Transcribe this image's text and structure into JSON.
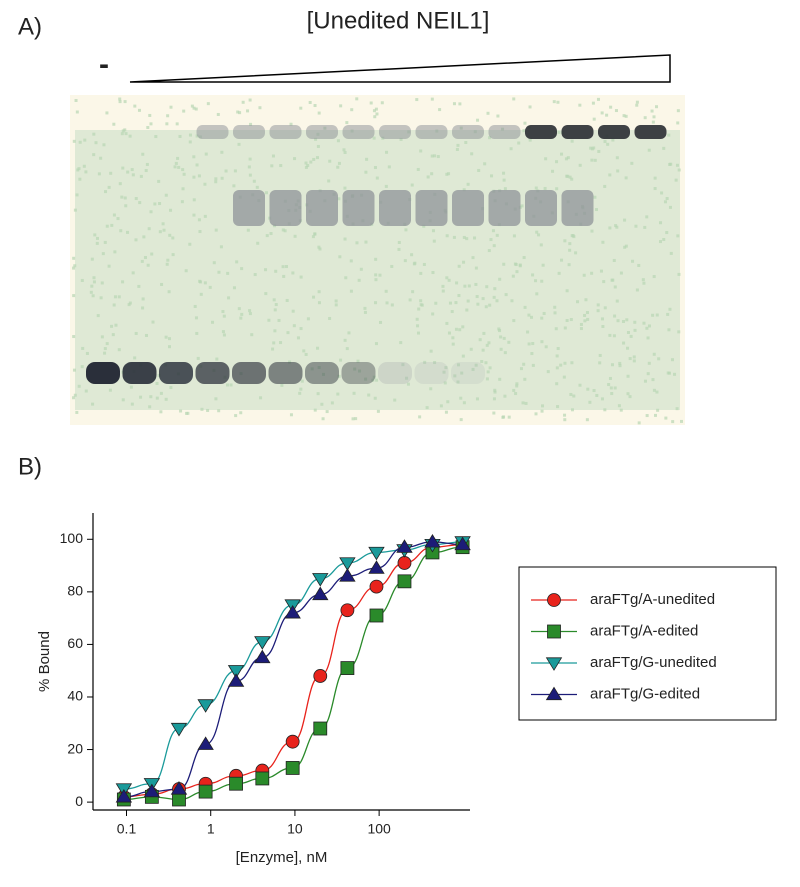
{
  "panel_a": {
    "label": "A)",
    "title": "[Unedited NEIL1]",
    "control_label": "-"
  },
  "chart_data": {
    "type": "scatter",
    "panel_label": "B)",
    "x_label": "[Enzyme], nM",
    "y_label": "% Bound",
    "xscale": "log",
    "xlim": [
      0.04,
      1200
    ],
    "xticks": [
      0.1,
      1,
      10,
      100
    ],
    "ylim": [
      -3,
      110
    ],
    "yticks": [
      0,
      20,
      40,
      60,
      80,
      100
    ],
    "legend": "right",
    "grid": false,
    "line": true,
    "x": [
      0.093,
      0.2,
      0.42,
      0.87,
      2,
      4.1,
      9.4,
      20,
      42,
      93,
      200,
      430,
      980
    ],
    "series": [
      {
        "name": "araFTg/A-unedited",
        "color": "#e8231c",
        "marker": "circle",
        "values": [
          2,
          3,
          5,
          7,
          10,
          12,
          23,
          48,
          73,
          82,
          91,
          97,
          98
        ]
      },
      {
        "name": "araFTg/A-edited",
        "color": "#2a8a2a",
        "marker": "square",
        "values": [
          1,
          2,
          1,
          4,
          7,
          9,
          13,
          28,
          51,
          71,
          84,
          95,
          97
        ]
      },
      {
        "name": "araFTg/G-unedited",
        "color": "#1a9a9a",
        "marker": "triangle-down",
        "values": [
          5,
          7,
          28,
          37,
          50,
          61,
          75,
          85,
          91,
          95,
          96,
          98,
          99
        ]
      },
      {
        "name": "araFTg/G-edited",
        "color": "#1c1c78",
        "marker": "triangle-up",
        "values": [
          2,
          4,
          5,
          22,
          46,
          55,
          72,
          79,
          86,
          89,
          97,
          99,
          98
        ]
      }
    ]
  }
}
